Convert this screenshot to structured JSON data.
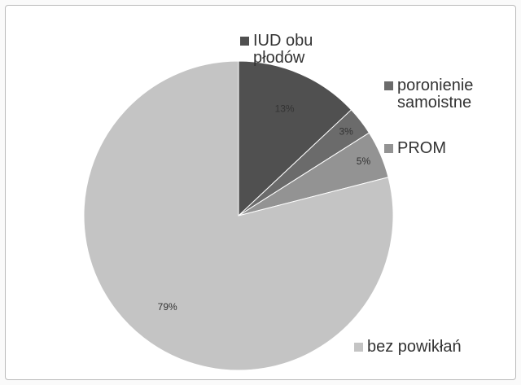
{
  "chart_data": {
    "type": "pie",
    "categories": [
      "IUD obu płodów",
      "poronienie samoistne",
      "PROM",
      "bez powikłań"
    ],
    "values": [
      13,
      3,
      5,
      79
    ],
    "value_labels": [
      "13%",
      "3%",
      "5%",
      "79%"
    ],
    "colors": [
      "#505050",
      "#6b6b6b",
      "#939393",
      "#c4c4c4"
    ]
  }
}
